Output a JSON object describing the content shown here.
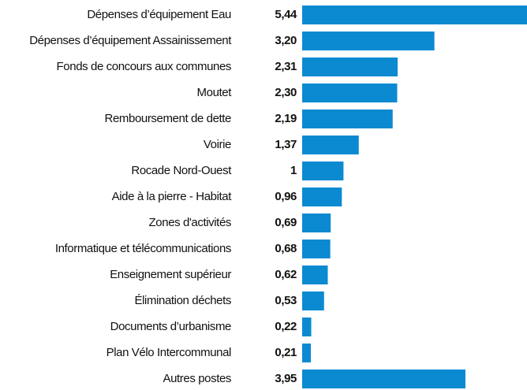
{
  "chart_data": {
    "type": "bar",
    "orientation": "horizontal",
    "categories": [
      "Dépenses d’équipement Eau",
      "Dépenses d’équipement Assainissement",
      "Fonds de concours aux communes",
      "Moutet",
      "Remboursement de dette",
      "Voirie",
      "Rocade Nord-Ouest",
      "Aide à la pierre - Habitat",
      "Zones d'activités",
      "Informatique et télécommunications",
      "Enseignement supérieur",
      "Élimination déchets",
      "Documents d’urbanisme",
      "Plan Vélo Intercommunal",
      "Autres postes"
    ],
    "values": [
      5.44,
      3.2,
      2.31,
      2.3,
      2.19,
      1.37,
      1,
      0.96,
      0.69,
      0.68,
      0.62,
      0.53,
      0.22,
      0.21,
      3.95
    ],
    "value_labels": [
      "5,44",
      "3,20",
      "2,31",
      "2,30",
      "2,19",
      "1,37",
      "1",
      "0,96",
      "0,69",
      "0,68",
      "0,62",
      "0,53",
      "0,22",
      "0,21",
      "3,95"
    ],
    "color": "#0b8ad2"
  }
}
